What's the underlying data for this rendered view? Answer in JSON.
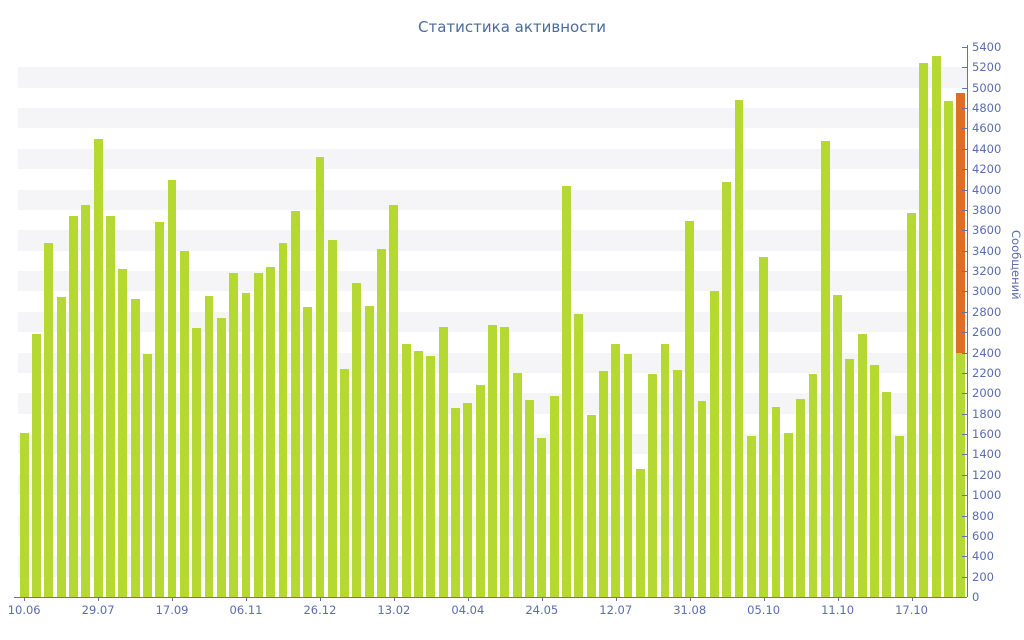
{
  "title": "Статистика активности",
  "colors": {
    "bar": "#b5d932",
    "highlight": "#e06d26",
    "title_text": "#4a6b9e",
    "axis_text": "#5b6cb0",
    "axis_line": "#5b74b4",
    "stripe": "#f5f5f7",
    "background": "#ffffff"
  },
  "chart_data": {
    "type": "bar",
    "title": "Статистика активности",
    "xlabel": "",
    "ylabel": "Сообщений",
    "ylim": [
      0,
      5400
    ],
    "y_tick_step": 200,
    "grid": "striped-horizontal-bands",
    "legend": "none",
    "x_tick_labels": [
      "10.06",
      "29.07",
      "17.09",
      "06.11",
      "26.12",
      "13.02",
      "04.04",
      "24.05",
      "12.07",
      "31.08",
      "05.10",
      "11.10",
      "17.10"
    ],
    "x_tick_every": 6,
    "values": [
      1610,
      2580,
      3480,
      2950,
      3740,
      3850,
      4500,
      3740,
      3220,
      2930,
      2390,
      3680,
      4090,
      3400,
      2640,
      2960,
      2740,
      3180,
      2980,
      3180,
      3240,
      3480,
      3790,
      2850,
      4320,
      3510,
      2240,
      3080,
      2860,
      3420,
      3850,
      2480,
      2420,
      2370,
      2650,
      1860,
      1900,
      2080,
      2670,
      2650,
      2200,
      1930,
      1560,
      1970,
      4040,
      2780,
      1790,
      2220,
      2480,
      2390,
      1260,
      2190,
      2480,
      2230,
      3690,
      1920,
      3000,
      4070,
      4880,
      1580,
      3340,
      1870,
      1610,
      1940,
      2190,
      4480,
      2970,
      2340,
      2580,
      2280,
      2010,
      1580,
      3770,
      5240,
      5310,
      4870,
      4950
    ],
    "highlight_last_bar": {
      "index": 76,
      "total": 4950,
      "green_segment_up_to": 2400,
      "orange_segment_from": 2400,
      "meaning": "last column drawn green below 2400 and orange from 2400 to 4950"
    }
  }
}
